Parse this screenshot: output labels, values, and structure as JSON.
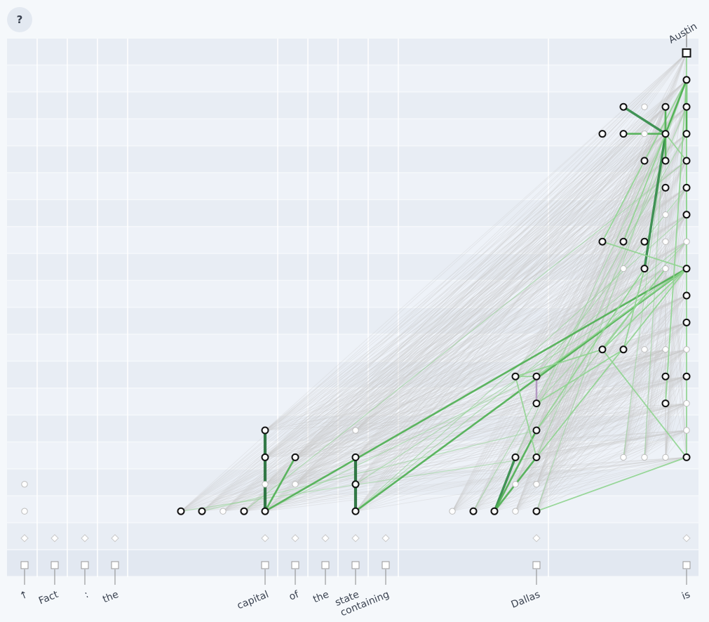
{
  "help_button": {
    "label": "?"
  },
  "colors": {
    "background": "#f5f8fb",
    "band_dark": "#e8edf4",
    "band_light": "#eef2f8",
    "edge_gray": "#c8c8c8",
    "edge_light_green": "#8fd48f",
    "edge_mid_green": "#4caf50",
    "edge_dark_green": "#1e6b34",
    "edge_purple": "#b399c2",
    "node_active": "#111111",
    "node_inactive": "#bbbbbb"
  },
  "tokens": [
    {
      "label": "↑",
      "col": 0
    },
    {
      "label": "Fact",
      "col": 1
    },
    {
      "label": ":",
      "col": 2
    },
    {
      "label": "the",
      "col": 3
    },
    {
      "label": "capital",
      "col": 8
    },
    {
      "label": "of",
      "col": 9
    },
    {
      "label": "the",
      "col": 10
    },
    {
      "label": "state",
      "col": 11
    },
    {
      "label": "containing",
      "col": 12
    },
    {
      "label": "Dallas",
      "col": 19
    },
    {
      "label": "is",
      "col": 24
    }
  ],
  "output_token": {
    "label": "Austin"
  },
  "nodes": [
    {
      "id": "e0",
      "col": 0,
      "row": 0,
      "kind": "embed",
      "active": true
    },
    {
      "id": "e1",
      "col": 1,
      "row": 0,
      "kind": "embed",
      "active": true
    },
    {
      "id": "e2",
      "col": 2,
      "row": 0,
      "kind": "embed",
      "active": true
    },
    {
      "id": "e3",
      "col": 3,
      "row": 0,
      "kind": "embed",
      "active": true
    },
    {
      "id": "e8",
      "col": 8,
      "row": 0,
      "kind": "embed",
      "active": true
    },
    {
      "id": "e9",
      "col": 9,
      "row": 0,
      "kind": "embed",
      "active": true
    },
    {
      "id": "e10",
      "col": 10,
      "row": 0,
      "kind": "embed",
      "active": true
    },
    {
      "id": "e11",
      "col": 11,
      "row": 0,
      "kind": "embed",
      "active": true
    },
    {
      "id": "e12",
      "col": 12,
      "row": 0,
      "kind": "embed",
      "active": true
    },
    {
      "id": "e19",
      "col": 19,
      "row": 0,
      "kind": "embed",
      "active": true
    },
    {
      "id": "e24",
      "col": 24,
      "row": 0,
      "kind": "embed",
      "active": true
    },
    {
      "id": "d0",
      "col": 0,
      "row": 1,
      "kind": "diamond",
      "active": false
    },
    {
      "id": "d1",
      "col": 1,
      "row": 1,
      "kind": "diamond",
      "active": false
    },
    {
      "id": "d2",
      "col": 2,
      "row": 1,
      "kind": "diamond",
      "active": false
    },
    {
      "id": "d3",
      "col": 3,
      "row": 1,
      "kind": "diamond",
      "active": false
    },
    {
      "id": "d8",
      "col": 8,
      "row": 1,
      "kind": "diamond",
      "active": false
    },
    {
      "id": "d9",
      "col": 9,
      "row": 1,
      "kind": "diamond",
      "active": false
    },
    {
      "id": "d10",
      "col": 10,
      "row": 1,
      "kind": "diamond",
      "active": false
    },
    {
      "id": "d11",
      "col": 11,
      "row": 1,
      "kind": "diamond",
      "active": false
    },
    {
      "id": "d12",
      "col": 12,
      "row": 1,
      "kind": "diamond",
      "active": false
    },
    {
      "id": "d19",
      "col": 19,
      "row": 1,
      "kind": "diamond",
      "active": false
    },
    {
      "id": "d24",
      "col": 24,
      "row": 1,
      "kind": "diamond",
      "active": false
    },
    {
      "id": "a0",
      "col": 0,
      "row": 2,
      "kind": "circle",
      "active": false
    },
    {
      "id": "a4",
      "col": 4,
      "row": 2,
      "kind": "circle",
      "active": true
    },
    {
      "id": "a5",
      "col": 5,
      "row": 2,
      "kind": "circle",
      "active": true
    },
    {
      "id": "a6",
      "col": 6,
      "row": 2,
      "kind": "circle",
      "active": false
    },
    {
      "id": "a7",
      "col": 7,
      "row": 2,
      "kind": "circle",
      "active": true
    },
    {
      "id": "a8",
      "col": 8,
      "row": 2,
      "kind": "circle",
      "active": true
    },
    {
      "id": "a11",
      "col": 11,
      "row": 2,
      "kind": "circle",
      "active": true
    },
    {
      "id": "a15",
      "col": 15,
      "row": 2,
      "kind": "circle",
      "active": false
    },
    {
      "id": "a16",
      "col": 16,
      "row": 2,
      "kind": "circle",
      "active": true
    },
    {
      "id": "a17",
      "col": 17,
      "row": 2,
      "kind": "circle",
      "active": true
    },
    {
      "id": "a18",
      "col": 18,
      "row": 2,
      "kind": "circle",
      "active": false
    },
    {
      "id": "a19",
      "col": 19,
      "row": 2,
      "kind": "circle",
      "active": true
    },
    {
      "id": "b0",
      "col": 0,
      "row": 3,
      "kind": "circle",
      "active": false
    },
    {
      "id": "b8",
      "col": 8,
      "row": 3,
      "kind": "circle",
      "active": false
    },
    {
      "id": "b9",
      "col": 9,
      "row": 3,
      "kind": "circle",
      "active": false
    },
    {
      "id": "b11",
      "col": 11,
      "row": 3,
      "kind": "circle",
      "active": true
    },
    {
      "id": "b18",
      "col": 18,
      "row": 3,
      "kind": "circle",
      "active": false
    },
    {
      "id": "b19",
      "col": 19,
      "row": 3,
      "kind": "circle",
      "active": false
    },
    {
      "id": "c8",
      "col": 8,
      "row": 4,
      "kind": "circle",
      "active": true
    },
    {
      "id": "c9",
      "col": 9,
      "row": 4,
      "kind": "circle",
      "active": true
    },
    {
      "id": "c11",
      "col": 11,
      "row": 4,
      "kind": "circle",
      "active": true
    },
    {
      "id": "c18",
      "col": 18,
      "row": 4,
      "kind": "circle",
      "active": true
    },
    {
      "id": "c19",
      "col": 19,
      "row": 4,
      "kind": "circle",
      "active": true
    },
    {
      "id": "c22",
      "col": 22,
      "row": 4,
      "kind": "circle",
      "active": false
    },
    {
      "id": "c23",
      "col": 23,
      "row": 4,
      "kind": "circle",
      "active": false
    },
    {
      "id": "c24b",
      "col": 24,
      "row": 4,
      "kind": "circle",
      "active": false
    },
    {
      "id": "c25",
      "col": 25,
      "row": 4,
      "kind": "circle",
      "active": true
    },
    {
      "id": "f8",
      "col": 8,
      "row": 5,
      "kind": "circle",
      "active": true
    },
    {
      "id": "f11",
      "col": 11,
      "row": 5,
      "kind": "circle",
      "active": false
    },
    {
      "id": "f19",
      "col": 19,
      "row": 5,
      "kind": "circle",
      "active": true
    },
    {
      "id": "f25",
      "col": 25,
      "row": 5,
      "kind": "circle",
      "active": false
    },
    {
      "id": "g19",
      "col": 19,
      "row": 6,
      "kind": "circle",
      "active": true
    },
    {
      "id": "g24",
      "col": 24,
      "row": 6,
      "kind": "circle",
      "active": true
    },
    {
      "id": "g25",
      "col": 25,
      "row": 6,
      "kind": "circle",
      "active": false
    },
    {
      "id": "h18",
      "col": 18,
      "row": 7,
      "kind": "circle",
      "active": true
    },
    {
      "id": "h19",
      "col": 19,
      "row": 7,
      "kind": "circle",
      "active": true
    },
    {
      "id": "h24",
      "col": 24,
      "row": 7,
      "kind": "circle",
      "active": true
    },
    {
      "id": "h25",
      "col": 25,
      "row": 7,
      "kind": "circle",
      "active": true
    },
    {
      "id": "i21",
      "col": 21,
      "row": 8,
      "kind": "circle",
      "active": true
    },
    {
      "id": "i22",
      "col": 22,
      "row": 8,
      "kind": "circle",
      "active": true
    },
    {
      "id": "i23",
      "col": 23,
      "row": 8,
      "kind": "circle",
      "active": false
    },
    {
      "id": "i24",
      "col": 24,
      "row": 8,
      "kind": "circle",
      "active": false
    },
    {
      "id": "i25",
      "col": 25,
      "row": 8,
      "kind": "circle",
      "active": false
    },
    {
      "id": "j25",
      "col": 25,
      "row": 9,
      "kind": "circle",
      "active": true
    },
    {
      "id": "k25",
      "col": 25,
      "row": 10,
      "kind": "circle",
      "active": true
    },
    {
      "id": "l22",
      "col": 22,
      "row": 11,
      "kind": "circle",
      "active": false
    },
    {
      "id": "l23",
      "col": 23,
      "row": 11,
      "kind": "circle",
      "active": true
    },
    {
      "id": "l24",
      "col": 24,
      "row": 11,
      "kind": "circle",
      "active": false
    },
    {
      "id": "l25",
      "col": 25,
      "row": 11,
      "kind": "circle",
      "active": true
    },
    {
      "id": "m21",
      "col": 21,
      "row": 12,
      "kind": "circle",
      "active": true
    },
    {
      "id": "m22",
      "col": 22,
      "row": 12,
      "kind": "circle",
      "active": true
    },
    {
      "id": "m23",
      "col": 23,
      "row": 12,
      "kind": "circle",
      "active": true
    },
    {
      "id": "m24",
      "col": 24,
      "row": 12,
      "kind": "circle",
      "active": false
    },
    {
      "id": "m25",
      "col": 25,
      "row": 12,
      "kind": "circle",
      "active": false
    },
    {
      "id": "n24",
      "col": 24,
      "row": 13,
      "kind": "circle",
      "active": false
    },
    {
      "id": "n25",
      "col": 25,
      "row": 13,
      "kind": "circle",
      "active": true
    },
    {
      "id": "o24",
      "col": 24,
      "row": 14,
      "kind": "circle",
      "active": true
    },
    {
      "id": "o25",
      "col": 25,
      "row": 14,
      "kind": "circle",
      "active": true
    },
    {
      "id": "p23",
      "col": 23,
      "row": 15,
      "kind": "circle",
      "active": true
    },
    {
      "id": "p24",
      "col": 24,
      "row": 15,
      "kind": "circle",
      "active": true
    },
    {
      "id": "p25",
      "col": 25,
      "row": 15,
      "kind": "circle",
      "active": true
    },
    {
      "id": "q21",
      "col": 21,
      "row": 16,
      "kind": "circle",
      "active": true
    },
    {
      "id": "q22",
      "col": 22,
      "row": 16,
      "kind": "circle",
      "active": true
    },
    {
      "id": "q23",
      "col": 23,
      "row": 16,
      "kind": "circle",
      "active": false
    },
    {
      "id": "q24",
      "col": 24,
      "row": 16,
      "kind": "circle",
      "active": true
    },
    {
      "id": "q25",
      "col": 25,
      "row": 16,
      "kind": "circle",
      "active": true
    },
    {
      "id": "r22",
      "col": 22,
      "row": 17,
      "kind": "circle",
      "active": true
    },
    {
      "id": "r23",
      "col": 23,
      "row": 17,
      "kind": "circle",
      "active": false
    },
    {
      "id": "r24",
      "col": 24,
      "row": 17,
      "kind": "circle",
      "active": true
    },
    {
      "id": "r25",
      "col": 25,
      "row": 17,
      "kind": "circle",
      "active": true
    },
    {
      "id": "s25",
      "col": 25,
      "row": 18,
      "kind": "circle",
      "active": true
    },
    {
      "id": "out",
      "col": 25,
      "row": 19,
      "kind": "output",
      "active": true
    }
  ],
  "edges": [
    {
      "from": "a8",
      "to": "f8",
      "w": 4
    },
    {
      "from": "a8",
      "to": "c9",
      "w": 2
    },
    {
      "from": "a11",
      "to": "c11",
      "w": 4
    },
    {
      "from": "a8",
      "to": "l25",
      "w": 2
    },
    {
      "from": "a11",
      "to": "l25",
      "w": 2
    },
    {
      "from": "a17",
      "to": "c18",
      "w": 3
    },
    {
      "from": "a17",
      "to": "c19",
      "w": 2
    },
    {
      "from": "a17",
      "to": "f19",
      "w": 2
    },
    {
      "from": "a19",
      "to": "c25",
      "w": 1
    },
    {
      "from": "c25",
      "to": "p25",
      "w": 1
    },
    {
      "from": "g24",
      "to": "s25",
      "w": 1
    },
    {
      "from": "i21",
      "to": "l25",
      "w": 1
    },
    {
      "from": "i21",
      "to": "l24",
      "w": 1
    },
    {
      "from": "l23",
      "to": "i22",
      "w": 1
    },
    {
      "from": "l23",
      "to": "q24",
      "w": 3
    },
    {
      "from": "m21",
      "to": "l25",
      "w": 1
    },
    {
      "from": "m21",
      "to": "s25",
      "w": 1
    },
    {
      "from": "m22",
      "to": "s25",
      "w": 1
    },
    {
      "from": "n25",
      "to": "s25",
      "w": 1
    },
    {
      "from": "o25",
      "to": "s25",
      "w": 1
    },
    {
      "from": "p24",
      "to": "q24",
      "w": 2
    },
    {
      "from": "q22",
      "to": "q24",
      "w": 2
    },
    {
      "from": "r22",
      "to": "q24",
      "w": 3
    },
    {
      "from": "r24",
      "to": "q24",
      "w": 2
    },
    {
      "from": "q24",
      "to": "s25",
      "w": 2
    },
    {
      "from": "q25",
      "to": "s25",
      "w": 2
    },
    {
      "from": "r25",
      "to": "s25",
      "w": 1
    },
    {
      "from": "p25",
      "to": "q24",
      "w": 1
    },
    {
      "from": "h18",
      "to": "c19",
      "w": 1
    },
    {
      "from": "h18",
      "to": "i21",
      "w": 1
    },
    {
      "from": "h19",
      "to": "l25",
      "w": 1
    },
    {
      "from": "h18",
      "to": "h19",
      "w": 1
    },
    {
      "from": "f19",
      "to": "l23",
      "w": 1
    },
    {
      "from": "g19",
      "to": "i22",
      "w": 1
    },
    {
      "from": "c25",
      "to": "i21",
      "w": 1
    },
    {
      "from": "c19",
      "to": "l25",
      "w": 1
    },
    {
      "from": "s25",
      "to": "out",
      "w": 1
    }
  ],
  "gray_edge_sources": [
    "a4",
    "a5",
    "a6",
    "a7",
    "a8",
    "b8",
    "c8",
    "f8",
    "b9",
    "c9",
    "a11",
    "b11",
    "c11",
    "f11",
    "a15",
    "a16",
    "a17",
    "a18",
    "a19",
    "b18",
    "b19",
    "c18",
    "c19",
    "f19",
    "g19",
    "h18",
    "h19",
    "c22",
    "c23",
    "c24b",
    "c25"
  ],
  "gray_edge_targets": [
    "out",
    "s25",
    "r25",
    "q25",
    "p25",
    "o25",
    "n25",
    "l25",
    "k25",
    "j25",
    "i25",
    "m25",
    "h25",
    "g25",
    "f25",
    "c25",
    "r24",
    "q24",
    "p24",
    "o24",
    "l24",
    "i24"
  ]
}
